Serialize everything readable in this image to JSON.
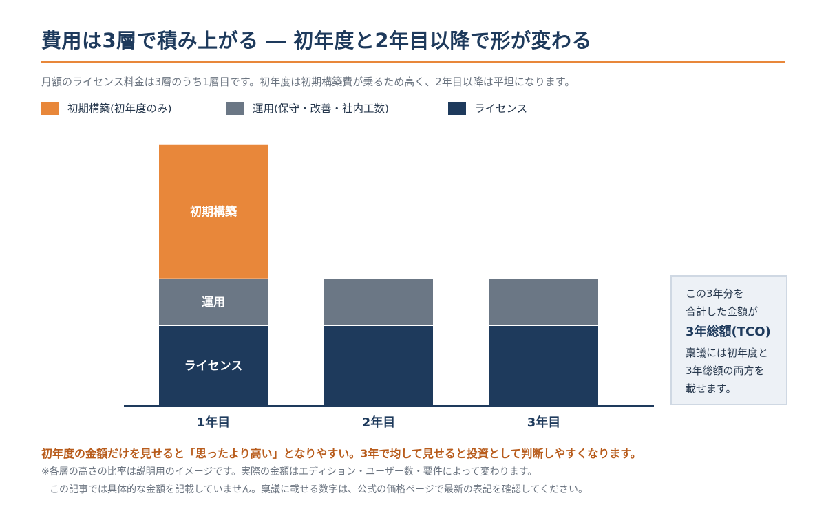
{
  "header": {
    "title": "費用は3層で積み上がる ― 初年度と2年目以降で形が変わる",
    "subtitle": "月額のライセンス料金は3層のうち1層目です。初年度は初期構築費が乗るため高く、2年目以降は平坦になります。"
  },
  "legend": {
    "items": [
      {
        "label": "初期構築(初年度のみ)",
        "color": "#e8873a"
      },
      {
        "label": "運用(保守・改善・社内工数)",
        "color": "#6b7785"
      },
      {
        "label": "ライセンス",
        "color": "#1e3a5c"
      }
    ]
  },
  "chart_data": {
    "type": "bar",
    "stacked": true,
    "categories": [
      "1年目",
      "2年目",
      "3年目"
    ],
    "series": [
      {
        "name": "ライセンス",
        "values": [
          3,
          3,
          3
        ],
        "color": "#1e3a5c",
        "bar_label": "ライセンス"
      },
      {
        "name": "運用",
        "values": [
          1.75,
          1.75,
          1.75
        ],
        "color": "#6b7785",
        "bar_label": "運用"
      },
      {
        "name": "初期構築",
        "values": [
          5,
          0,
          0
        ],
        "color": "#e8873a",
        "bar_label": "初期構築"
      }
    ],
    "xlabel": "",
    "ylabel": "",
    "ylim": [
      0,
      10
    ],
    "grid": false,
    "legend_position": "top-left"
  },
  "side_note": {
    "line1": "この3年分を",
    "line2": "合計した金額が",
    "strong": "3年総額(TCO)",
    "line3": "稟議には初年度と",
    "line4": "3年総額の両方を",
    "line5": "載せます。"
  },
  "footer": {
    "emphasis": "初年度の金額だけを見せると「思ったより高い」となりやすい。3年で均して見せると投資として判断しやすくなります。",
    "note1": "※各層の高さの比率は説明用のイメージです。実際の金額はエディション・ユーザー数・要件によって変わります。",
    "note2": "この記事では具体的な金額を記載していません。稟議に載せる数字は、公式の価格ページで最新の表記を確認してください。"
  }
}
